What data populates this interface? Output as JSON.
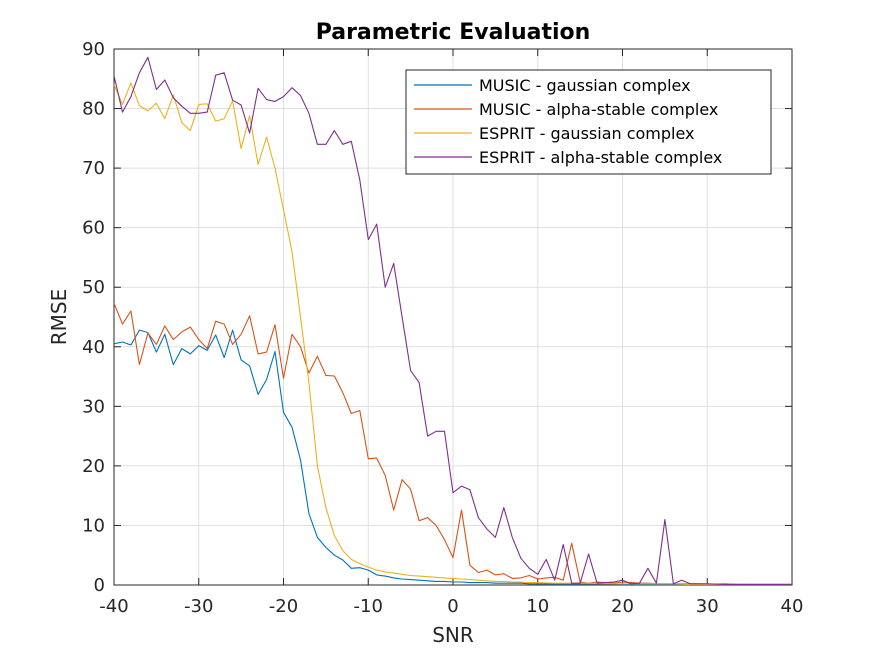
{
  "chart_data": {
    "type": "line",
    "title": "Parametric Evaluation",
    "xlabel": "SNR",
    "ylabel": "RMSE",
    "xlim": [
      -40,
      40
    ],
    "ylim": [
      0,
      90
    ],
    "xticks": [
      -40,
      -30,
      -20,
      -10,
      0,
      10,
      20,
      30,
      40
    ],
    "yticks": [
      0,
      10,
      20,
      30,
      40,
      50,
      60,
      70,
      80,
      90
    ],
    "grid": true,
    "legend_position": "top-right",
    "series": [
      {
        "name": "MUSIC - gaussian complex",
        "color": "#0072BD",
        "x": [
          -40,
          -39,
          -38,
          -37,
          -36,
          -35,
          -34,
          -33,
          -32,
          -31,
          -30,
          -29,
          -28,
          -27,
          -26,
          -25,
          -24,
          -23,
          -22,
          -21,
          -20,
          -19,
          -18,
          -17,
          -16,
          -15,
          -14,
          -13,
          -12,
          -11,
          -10,
          -9,
          -8,
          -7,
          -6,
          -5,
          -4,
          -3,
          -2,
          -1,
          0,
          1,
          2,
          3,
          4,
          5,
          6,
          7,
          8,
          9,
          10,
          12,
          14,
          16,
          18,
          20,
          22,
          24,
          26,
          28,
          30,
          32,
          34,
          36,
          38,
          40
        ],
        "y": [
          40.5,
          40.8,
          40.3,
          42.8,
          42.4,
          39.1,
          42.1,
          37.0,
          39.7,
          38.8,
          40.2,
          39.4,
          42.0,
          38.2,
          42.8,
          37.8,
          36.8,
          32.0,
          34.5,
          39.2,
          29.0,
          26.5,
          21.0,
          12.0,
          8.0,
          6.3,
          5.0,
          4.2,
          2.8,
          2.9,
          2.5,
          1.7,
          1.5,
          1.2,
          1.0,
          0.9,
          0.8,
          0.7,
          0.6,
          0.6,
          0.5,
          0.5,
          0.4,
          0.4,
          0.4,
          0.3,
          0.3,
          0.3,
          0.3,
          0.2,
          0.2,
          0.2,
          0.2,
          0.2,
          0.2,
          0.1,
          0.1,
          0.1,
          0.1,
          0.1,
          0.1,
          0.1,
          0.1,
          0.1,
          0.1,
          0.1
        ]
      },
      {
        "name": "MUSIC - alpha-stable complex",
        "color": "#D95319",
        "x": [
          -40,
          -39,
          -38,
          -37,
          -36,
          -35,
          -34,
          -33,
          -32,
          -31,
          -30,
          -29,
          -28,
          -27,
          -26,
          -25,
          -24,
          -23,
          -22,
          -21,
          -20,
          -19,
          -18,
          -17,
          -16,
          -15,
          -14,
          -13,
          -12,
          -11,
          -10,
          -9,
          -8,
          -7,
          -6,
          -5,
          -4,
          -3,
          -2,
          -1,
          0,
          1,
          2,
          3,
          4,
          5,
          6,
          7,
          8,
          9,
          10,
          11,
          12,
          13,
          14,
          15,
          16,
          17,
          18,
          19,
          20,
          21,
          22,
          23,
          24,
          25,
          26,
          27,
          28,
          29,
          30,
          32,
          34,
          36,
          38,
          40
        ],
        "y": [
          47.3,
          43.8,
          46.0,
          37.0,
          42.3,
          40.4,
          43.5,
          41.2,
          42.5,
          43.3,
          41.2,
          39.7,
          44.3,
          43.8,
          40.4,
          42.1,
          45.2,
          38.8,
          39.1,
          43.7,
          34.7,
          42.1,
          40.0,
          35.6,
          38.4,
          35.2,
          35.1,
          32.3,
          28.8,
          29.3,
          21.2,
          21.3,
          18.4,
          12.6,
          17.7,
          16.1,
          10.8,
          11.3,
          10.0,
          7.6,
          4.6,
          12.6,
          3.3,
          2.1,
          2.5,
          1.7,
          1.9,
          1.1,
          1.2,
          1.6,
          1.0,
          1.2,
          1.3,
          0.8,
          7.0,
          0.5,
          0.3,
          0.5,
          0.4,
          0.3,
          0.5,
          0.4,
          0.3,
          0.3,
          0.2,
          0.2,
          0.2,
          0.2,
          0.2,
          0.2,
          0.1,
          0.2,
          0.1,
          0.1,
          0.1,
          0.1
        ]
      },
      {
        "name": "ESPRIT - gaussian complex",
        "color": "#EDB120",
        "x": [
          -40,
          -39,
          -38,
          -37,
          -36,
          -35,
          -34,
          -33,
          -32,
          -31,
          -30,
          -29,
          -28,
          -27,
          -26,
          -25,
          -24,
          -23,
          -22,
          -21,
          -20,
          -19,
          -18,
          -17,
          -16,
          -15,
          -14,
          -13,
          -12,
          -11,
          -10,
          -9,
          -8,
          -7,
          -6,
          -5,
          -4,
          -3,
          -2,
          -1,
          0,
          1,
          2,
          3,
          4,
          5,
          6,
          7,
          8,
          9,
          10,
          12,
          14,
          16,
          18,
          20,
          22,
          24,
          26,
          28,
          30,
          32,
          34,
          36,
          38,
          40
        ],
        "y": [
          84.0,
          80.7,
          84.3,
          80.5,
          79.6,
          80.9,
          78.3,
          82.3,
          77.6,
          76.3,
          80.7,
          80.8,
          77.9,
          78.3,
          81.3,
          73.3,
          78.8,
          70.6,
          75.2,
          70.0,
          63.0,
          56.0,
          45.0,
          34.0,
          20.0,
          13.0,
          8.3,
          5.8,
          4.3,
          3.6,
          3.0,
          2.5,
          2.2,
          2.0,
          1.8,
          1.6,
          1.5,
          1.4,
          1.3,
          1.2,
          1.1,
          1.0,
          0.9,
          0.8,
          0.7,
          0.6,
          0.6,
          0.5,
          0.5,
          0.4,
          0.4,
          0.3,
          0.3,
          0.3,
          0.2,
          0.2,
          0.2,
          0.2,
          0.2,
          0.1,
          0.1,
          0.1,
          0.1,
          0.1,
          0.1,
          0.1
        ]
      },
      {
        "name": "ESPRIT - alpha-stable complex",
        "color": "#7E2F8E",
        "x": [
          -40,
          -39,
          -38,
          -37,
          -36,
          -35,
          -34,
          -33,
          -32,
          -31,
          -30,
          -29,
          -28,
          -27,
          -26,
          -25,
          -24,
          -23,
          -22,
          -21,
          -20,
          -19,
          -18,
          -17,
          -16,
          -15,
          -14,
          -13,
          -12,
          -11,
          -10,
          -9,
          -8,
          -7,
          -6,
          -5,
          -4,
          -3,
          -2,
          -1,
          0,
          1,
          2,
          3,
          4,
          5,
          6,
          7,
          8,
          9,
          10,
          11,
          12,
          13,
          14,
          15,
          16,
          17,
          18,
          19,
          20,
          21,
          22,
          23,
          24,
          25,
          26,
          27,
          28,
          29,
          30,
          32,
          34,
          36,
          38,
          40
        ],
        "y": [
          85.5,
          79.4,
          82.0,
          86.0,
          88.6,
          83.2,
          84.8,
          81.8,
          80.4,
          79.2,
          79.2,
          79.4,
          85.6,
          86.0,
          81.4,
          80.6,
          75.9,
          83.4,
          81.5,
          81.2,
          82.0,
          83.5,
          82.2,
          79.2,
          74.0,
          74.0,
          76.3,
          74.0,
          74.5,
          68.0,
          58.0,
          60.6,
          50.0,
          54.0,
          45.0,
          36.0,
          34.0,
          25.0,
          25.8,
          25.8,
          15.5,
          16.6,
          16.0,
          11.3,
          9.4,
          8.0,
          13.0,
          8.0,
          4.5,
          2.8,
          1.8,
          4.3,
          0.8,
          6.8,
          0.3,
          0.3,
          5.2,
          0.3,
          0.4,
          0.5,
          0.8,
          0.2,
          0.3,
          2.8,
          0.3,
          11.0,
          0.2,
          0.8,
          0.2,
          0.2,
          0.2,
          0.1,
          0.1,
          0.1,
          0.1,
          0.1
        ]
      }
    ]
  }
}
